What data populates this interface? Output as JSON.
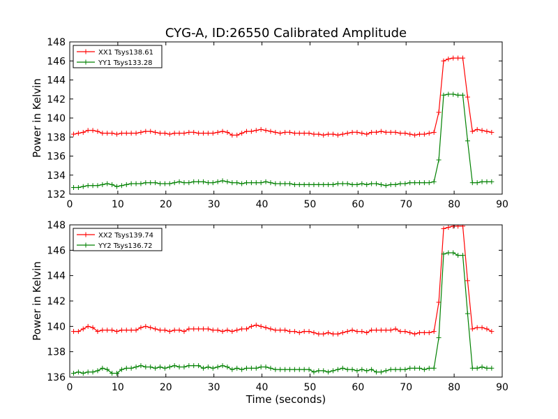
{
  "title": "CYG-A, ID:26550 Calibrated Amplitude",
  "colors": {
    "series_a": "#ff0000",
    "series_b": "#008000"
  },
  "chart_data": [
    {
      "type": "line",
      "xlabel": "",
      "ylabel": "Power in Kelvin",
      "xlim": [
        0,
        90
      ],
      "ylim": [
        132,
        148
      ],
      "xticks": [
        0,
        10,
        20,
        30,
        40,
        50,
        60,
        70,
        80,
        90
      ],
      "yticks": [
        132,
        134,
        136,
        138,
        140,
        142,
        144,
        146,
        148
      ],
      "grid": false,
      "legend": "top-left",
      "x": [
        0.8,
        1.8,
        2.8,
        3.8,
        4.8,
        5.8,
        6.8,
        7.8,
        8.8,
        9.8,
        10.8,
        11.8,
        12.8,
        13.8,
        14.8,
        15.8,
        16.8,
        17.8,
        18.8,
        19.8,
        20.8,
        21.8,
        22.8,
        23.8,
        24.8,
        25.8,
        26.8,
        27.8,
        28.8,
        29.8,
        30.8,
        31.8,
        32.8,
        33.8,
        34.8,
        35.8,
        36.8,
        37.8,
        38.8,
        39.8,
        40.8,
        41.8,
        42.8,
        43.8,
        44.8,
        45.8,
        46.8,
        47.8,
        48.8,
        49.8,
        50.8,
        51.8,
        52.8,
        53.8,
        54.8,
        55.8,
        56.8,
        57.8,
        58.8,
        59.8,
        60.8,
        61.8,
        62.8,
        63.8,
        64.8,
        65.8,
        66.8,
        67.8,
        68.8,
        69.8,
        70.8,
        71.8,
        72.8,
        73.8,
        74.8,
        75.8,
        76.8,
        77.8,
        78.8,
        79.8,
        80.8,
        81.8,
        82.8,
        83.8,
        84.8,
        85.8,
        86.8,
        87.8
      ],
      "series": [
        {
          "name": "XX1 Tsys138.61",
          "values": [
            138.3,
            138.4,
            138.5,
            138.7,
            138.7,
            138.6,
            138.4,
            138.4,
            138.4,
            138.3,
            138.4,
            138.4,
            138.4,
            138.4,
            138.5,
            138.6,
            138.6,
            138.5,
            138.4,
            138.4,
            138.3,
            138.4,
            138.4,
            138.4,
            138.5,
            138.5,
            138.4,
            138.4,
            138.4,
            138.4,
            138.5,
            138.6,
            138.5,
            138.2,
            138.2,
            138.4,
            138.6,
            138.6,
            138.7,
            138.8,
            138.7,
            138.6,
            138.5,
            138.4,
            138.5,
            138.5,
            138.4,
            138.4,
            138.4,
            138.4,
            138.3,
            138.3,
            138.2,
            138.3,
            138.3,
            138.2,
            138.3,
            138.4,
            138.5,
            138.5,
            138.4,
            138.3,
            138.5,
            138.5,
            138.6,
            138.5,
            138.5,
            138.5,
            138.4,
            138.4,
            138.3,
            138.2,
            138.3,
            138.3,
            138.4,
            138.5,
            140.6,
            146.0,
            146.2,
            146.3,
            146.3,
            146.3,
            142.2,
            138.6,
            138.8,
            138.7,
            138.6,
            138.5
          ]
        },
        {
          "name": "YY1 Tsys133.28",
          "values": [
            132.7,
            132.7,
            132.8,
            132.9,
            132.9,
            132.9,
            133.0,
            133.1,
            133.0,
            132.8,
            132.9,
            133.0,
            133.1,
            133.1,
            133.1,
            133.2,
            133.2,
            133.2,
            133.1,
            133.1,
            133.1,
            133.2,
            133.3,
            133.2,
            133.2,
            133.3,
            133.3,
            133.3,
            133.2,
            133.2,
            133.3,
            133.4,
            133.3,
            133.2,
            133.2,
            133.1,
            133.2,
            133.2,
            133.2,
            133.2,
            133.3,
            133.2,
            133.1,
            133.1,
            133.1,
            133.1,
            133.0,
            133.0,
            133.0,
            133.0,
            133.0,
            133.0,
            133.0,
            133.0,
            133.0,
            133.1,
            133.1,
            133.1,
            133.0,
            133.0,
            133.1,
            133.0,
            133.1,
            133.1,
            133.0,
            132.9,
            133.0,
            133.0,
            133.1,
            133.1,
            133.2,
            133.2,
            133.2,
            133.2,
            133.2,
            133.3,
            135.6,
            142.4,
            142.5,
            142.5,
            142.4,
            142.4,
            137.6,
            133.2,
            133.2,
            133.3,
            133.3,
            133.3
          ]
        }
      ]
    },
    {
      "type": "line",
      "xlabel": "Time (seconds)",
      "ylabel": "Power in Kelvin",
      "xlim": [
        0,
        90
      ],
      "ylim": [
        136,
        148
      ],
      "xticks": [
        0,
        10,
        20,
        30,
        40,
        50,
        60,
        70,
        80,
        90
      ],
      "yticks": [
        136,
        138,
        140,
        142,
        144,
        146,
        148
      ],
      "grid": false,
      "legend": "top-left",
      "x": [
        0.8,
        1.8,
        2.8,
        3.8,
        4.8,
        5.8,
        6.8,
        7.8,
        8.8,
        9.8,
        10.8,
        11.8,
        12.8,
        13.8,
        14.8,
        15.8,
        16.8,
        17.8,
        18.8,
        19.8,
        20.8,
        21.8,
        22.8,
        23.8,
        24.8,
        25.8,
        26.8,
        27.8,
        28.8,
        29.8,
        30.8,
        31.8,
        32.8,
        33.8,
        34.8,
        35.8,
        36.8,
        37.8,
        38.8,
        39.8,
        40.8,
        41.8,
        42.8,
        43.8,
        44.8,
        45.8,
        46.8,
        47.8,
        48.8,
        49.8,
        50.8,
        51.8,
        52.8,
        53.8,
        54.8,
        55.8,
        56.8,
        57.8,
        58.8,
        59.8,
        60.8,
        61.8,
        62.8,
        63.8,
        64.8,
        65.8,
        66.8,
        67.8,
        68.8,
        69.8,
        70.8,
        71.8,
        72.8,
        73.8,
        74.8,
        75.8,
        76.8,
        77.8,
        78.8,
        79.8,
        80.8,
        81.8,
        82.8,
        83.8,
        84.8,
        85.8,
        86.8,
        87.8
      ],
      "series": [
        {
          "name": "XX2 Tsys139.74",
          "values": [
            139.6,
            139.6,
            139.8,
            140.0,
            139.9,
            139.6,
            139.7,
            139.7,
            139.7,
            139.6,
            139.7,
            139.7,
            139.7,
            139.7,
            139.9,
            140.0,
            139.9,
            139.8,
            139.7,
            139.7,
            139.6,
            139.7,
            139.7,
            139.6,
            139.8,
            139.8,
            139.8,
            139.8,
            139.8,
            139.7,
            139.7,
            139.6,
            139.7,
            139.6,
            139.7,
            139.8,
            139.8,
            140.0,
            140.1,
            140.0,
            139.9,
            139.8,
            139.7,
            139.7,
            139.7,
            139.6,
            139.6,
            139.5,
            139.6,
            139.6,
            139.5,
            139.4,
            139.4,
            139.5,
            139.4,
            139.4,
            139.5,
            139.6,
            139.7,
            139.6,
            139.6,
            139.5,
            139.7,
            139.7,
            139.7,
            139.7,
            139.7,
            139.8,
            139.6,
            139.6,
            139.5,
            139.4,
            139.5,
            139.5,
            139.5,
            139.6,
            141.9,
            147.7,
            147.8,
            147.9,
            147.9,
            147.9,
            143.6,
            139.8,
            139.9,
            139.9,
            139.8,
            139.6
          ]
        },
        {
          "name": "YY2 Tsys136.72",
          "values": [
            136.3,
            136.4,
            136.3,
            136.4,
            136.4,
            136.5,
            136.7,
            136.6,
            136.3,
            136.3,
            136.6,
            136.7,
            136.7,
            136.8,
            136.9,
            136.8,
            136.8,
            136.7,
            136.8,
            136.7,
            136.8,
            136.9,
            136.8,
            136.8,
            136.9,
            136.9,
            136.9,
            136.7,
            136.8,
            136.7,
            136.8,
            136.9,
            136.8,
            136.6,
            136.7,
            136.6,
            136.7,
            136.7,
            136.7,
            136.8,
            136.8,
            136.7,
            136.6,
            136.6,
            136.6,
            136.6,
            136.6,
            136.6,
            136.6,
            136.6,
            136.4,
            136.5,
            136.5,
            136.4,
            136.5,
            136.6,
            136.7,
            136.6,
            136.6,
            136.5,
            136.6,
            136.5,
            136.6,
            136.4,
            136.4,
            136.5,
            136.6,
            136.6,
            136.6,
            136.6,
            136.7,
            136.7,
            136.7,
            136.6,
            136.7,
            136.7,
            139.1,
            145.7,
            145.8,
            145.8,
            145.6,
            145.6,
            141.0,
            136.7,
            136.7,
            136.8,
            136.7,
            136.7
          ]
        }
      ]
    }
  ]
}
